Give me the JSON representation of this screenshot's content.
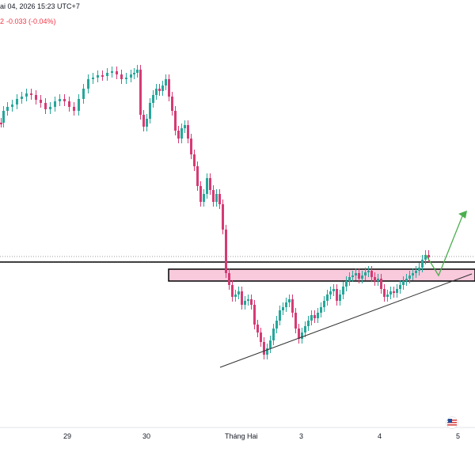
{
  "header": {
    "datetime": "ai 04, 2026 15:23 UTC+7",
    "change_prefix": "2",
    "change": "-0.033 (-0.04%)"
  },
  "colors": {
    "up": "#26a69a",
    "down": "#d63a74",
    "zone_fill": "#f9c9dc",
    "trendline": "#333333",
    "level_line": "#000000",
    "projection_arrow": "#4caf50",
    "price_line": "#9e9e9e"
  },
  "chart_data": {
    "type": "candlestick",
    "title": "",
    "xlabel": "",
    "ylabel": "",
    "x_ticks": [
      "29",
      "30",
      "Tháng Hai",
      "3",
      "4",
      "5"
    ],
    "candles_close_path": [
      [
        0,
        155
      ],
      [
        3,
        140
      ],
      [
        8,
        135
      ],
      [
        14,
        132
      ],
      [
        20,
        125
      ],
      [
        26,
        122
      ],
      [
        32,
        118
      ],
      [
        38,
        120
      ],
      [
        44,
        126
      ],
      [
        50,
        130
      ],
      [
        56,
        138
      ],
      [
        62,
        135
      ],
      [
        68,
        128
      ],
      [
        74,
        125
      ],
      [
        80,
        128
      ],
      [
        86,
        135
      ],
      [
        92,
        140
      ],
      [
        98,
        125
      ],
      [
        104,
        112
      ],
      [
        110,
        100
      ],
      [
        116,
        98
      ],
      [
        122,
        95
      ],
      [
        128,
        96
      ],
      [
        134,
        92
      ],
      [
        140,
        90
      ],
      [
        146,
        94
      ],
      [
        152,
        100
      ],
      [
        158,
        98
      ],
      [
        164,
        94
      ],
      [
        168,
        92
      ],
      [
        172,
        88
      ],
      [
        176,
        145
      ],
      [
        180,
        160
      ],
      [
        184,
        150
      ],
      [
        188,
        130
      ],
      [
        192,
        120
      ],
      [
        196,
        112
      ],
      [
        200,
        115
      ],
      [
        204,
        108
      ],
      [
        208,
        100
      ],
      [
        212,
        122
      ],
      [
        216,
        140
      ],
      [
        220,
        165
      ],
      [
        224,
        175
      ],
      [
        228,
        162
      ],
      [
        232,
        158
      ],
      [
        236,
        175
      ],
      [
        240,
        195
      ],
      [
        244,
        210
      ],
      [
        248,
        235
      ],
      [
        252,
        255
      ],
      [
        256,
        245
      ],
      [
        260,
        225
      ],
      [
        264,
        240
      ],
      [
        268,
        255
      ],
      [
        272,
        245
      ],
      [
        276,
        258
      ],
      [
        280,
        290
      ],
      [
        284,
        345
      ],
      [
        288,
        360
      ],
      [
        292,
        375
      ],
      [
        296,
        372
      ],
      [
        300,
        368
      ],
      [
        304,
        385
      ],
      [
        308,
        380
      ],
      [
        312,
        378
      ],
      [
        316,
        385
      ],
      [
        320,
        410
      ],
      [
        324,
        420
      ],
      [
        328,
        432
      ],
      [
        332,
        448
      ],
      [
        336,
        440
      ],
      [
        340,
        430
      ],
      [
        344,
        415
      ],
      [
        348,
        405
      ],
      [
        352,
        392
      ],
      [
        356,
        388
      ],
      [
        360,
        382
      ],
      [
        364,
        378
      ],
      [
        368,
        395
      ],
      [
        372,
        415
      ],
      [
        376,
        428
      ],
      [
        380,
        420
      ],
      [
        384,
        412
      ],
      [
        388,
        405
      ],
      [
        392,
        398
      ],
      [
        396,
        402
      ],
      [
        400,
        395
      ],
      [
        404,
        388
      ],
      [
        408,
        380
      ],
      [
        412,
        372
      ],
      [
        416,
        368
      ],
      [
        420,
        365
      ],
      [
        424,
        380
      ],
      [
        428,
        372
      ],
      [
        432,
        362
      ],
      [
        436,
        355
      ],
      [
        440,
        350
      ],
      [
        444,
        348
      ],
      [
        448,
        345
      ],
      [
        452,
        352
      ],
      [
        456,
        348
      ],
      [
        460,
        344
      ],
      [
        464,
        342
      ],
      [
        468,
        350
      ],
      [
        472,
        355
      ],
      [
        476,
        352
      ],
      [
        480,
        365
      ],
      [
        484,
        375
      ],
      [
        488,
        372
      ],
      [
        492,
        368
      ],
      [
        496,
        370
      ],
      [
        500,
        365
      ],
      [
        504,
        360
      ],
      [
        508,
        355
      ],
      [
        512,
        352
      ],
      [
        516,
        348
      ],
      [
        520,
        345
      ],
      [
        524,
        342
      ],
      [
        528,
        338
      ],
      [
        532,
        328
      ],
      [
        536,
        322
      ],
      [
        540,
        325
      ]
    ],
    "annotations": [
      "support-resistance zone",
      "ascending trendline",
      "horizontal level",
      "projected breakout arrow"
    ]
  }
}
